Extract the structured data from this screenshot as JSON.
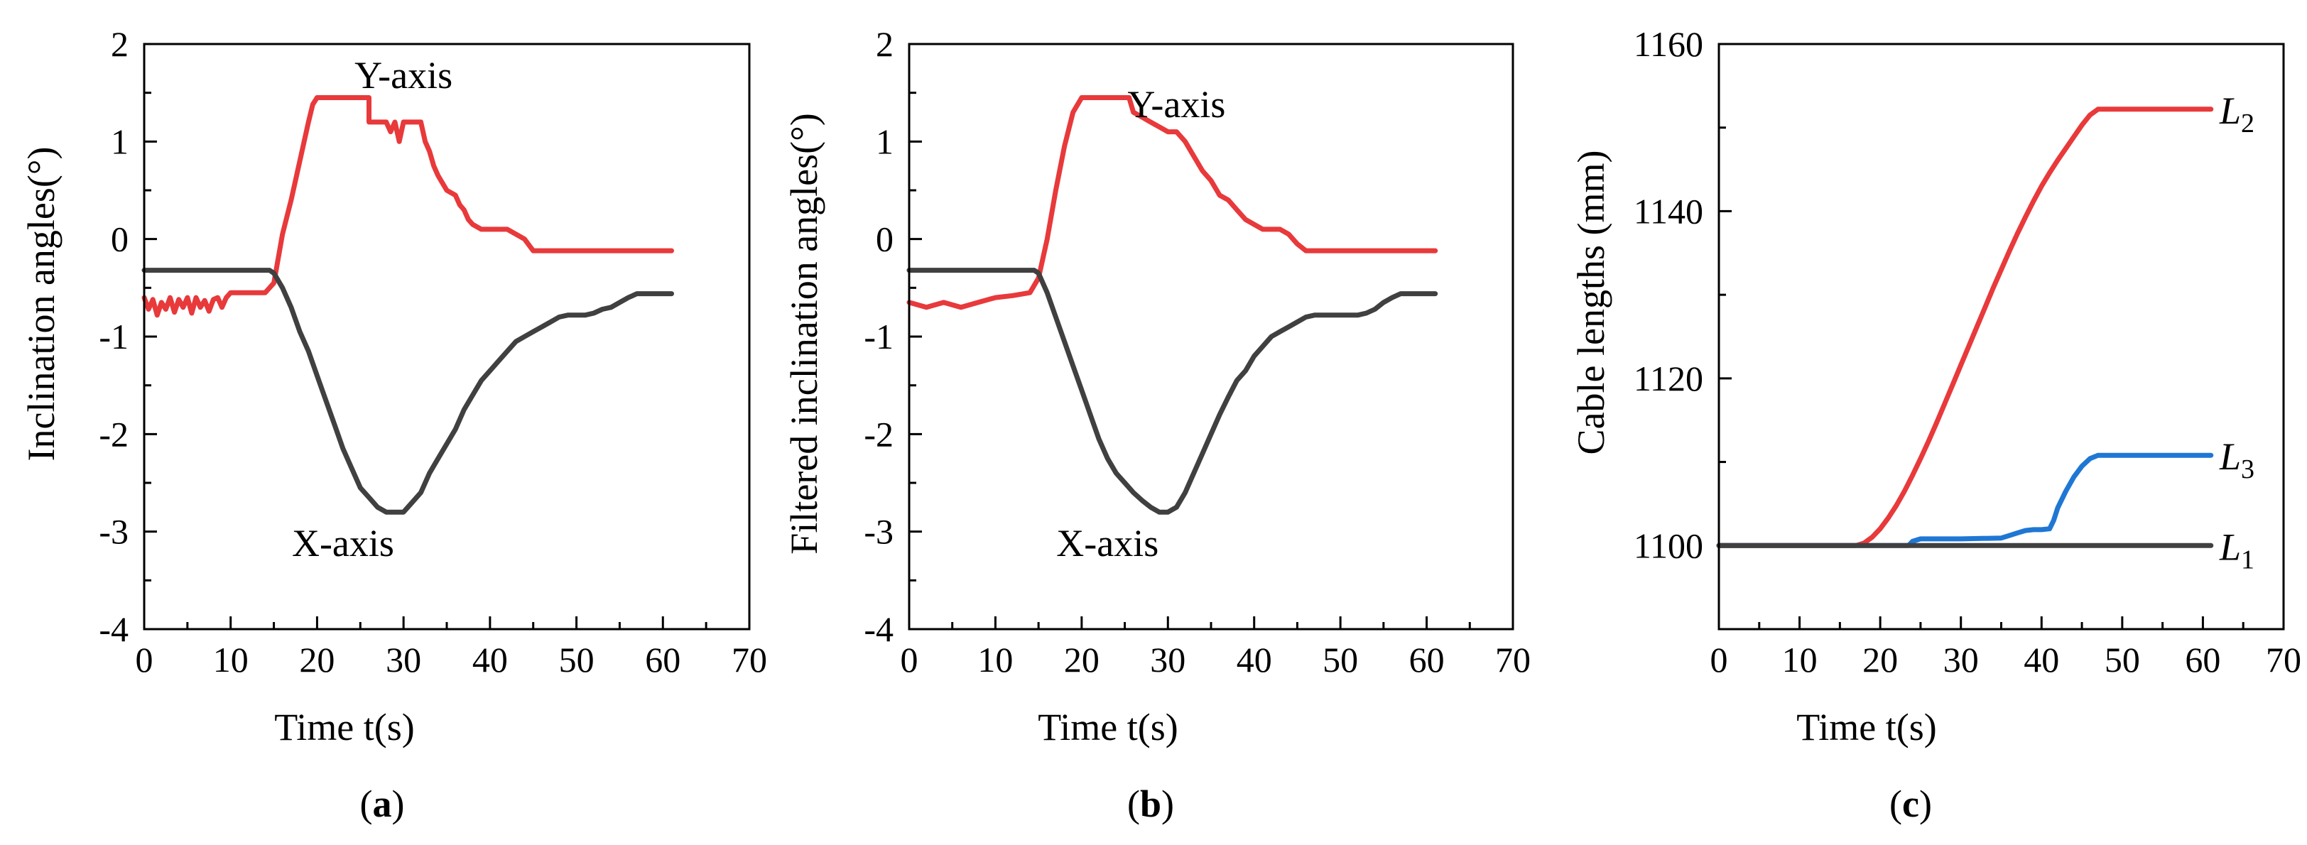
{
  "chart_data": [
    {
      "type": "line",
      "panel_label": "a",
      "xlabel": "Time t(s)",
      "ylabel": "Inclination angles(°)",
      "xlim": [
        0,
        70
      ],
      "ylim": [
        -4,
        2
      ],
      "xticks": [
        "0",
        "10",
        "20",
        "30",
        "40",
        "50",
        "60",
        "70"
      ],
      "yticks": [
        "-4",
        "-3",
        "-2",
        "-1",
        "0",
        "1",
        "2"
      ],
      "annotations": [
        {
          "text": "Y-axis",
          "x": 30,
          "y": 1.55
        },
        {
          "text": "X-axis",
          "x": 23,
          "y": -3.25
        }
      ],
      "series": [
        {
          "name": "Y-axis",
          "color": "#e8393b",
          "x": [
            0,
            0.5,
            1,
            1.5,
            2,
            2.5,
            3,
            3.5,
            4,
            4.5,
            5,
            5.5,
            6,
            6.5,
            7,
            7.5,
            8,
            8.5,
            9,
            9.5,
            10,
            14,
            15,
            16,
            17,
            17.5,
            18,
            18.5,
            19,
            19.5,
            20,
            26,
            26,
            28,
            28.5,
            29,
            29.5,
            30,
            32,
            32.5,
            33,
            33.5,
            34,
            35,
            36,
            36.5,
            37,
            37.5,
            38,
            39,
            40,
            41,
            42,
            43,
            44,
            45,
            61
          ],
          "y": [
            -0.6,
            -0.72,
            -0.62,
            -0.78,
            -0.65,
            -0.72,
            -0.6,
            -0.75,
            -0.62,
            -0.7,
            -0.6,
            -0.76,
            -0.6,
            -0.7,
            -0.63,
            -0.74,
            -0.62,
            -0.6,
            -0.7,
            -0.6,
            -0.55,
            -0.55,
            -0.45,
            0.05,
            0.4,
            0.6,
            0.8,
            1.0,
            1.2,
            1.38,
            1.45,
            1.45,
            1.2,
            1.2,
            1.1,
            1.2,
            1.0,
            1.2,
            1.2,
            1.0,
            0.9,
            0.75,
            0.65,
            0.5,
            0.45,
            0.35,
            0.3,
            0.2,
            0.15,
            0.1,
            0.1,
            0.1,
            0.1,
            0.05,
            0.0,
            -0.12,
            -0.12
          ]
        },
        {
          "name": "X-axis",
          "color": "#404040",
          "x": [
            0,
            14.5,
            15,
            16,
            17,
            18,
            19,
            20,
            21,
            22,
            23,
            24,
            25,
            26,
            27,
            28,
            29,
            30,
            31,
            32,
            33,
            34,
            35,
            36,
            37,
            38,
            39,
            40,
            41,
            42,
            43,
            44,
            45,
            46,
            47,
            48,
            49,
            50,
            51,
            52,
            53,
            54,
            55,
            56,
            57,
            58,
            59,
            60,
            61
          ],
          "y": [
            -0.32,
            -0.32,
            -0.35,
            -0.5,
            -0.7,
            -0.95,
            -1.15,
            -1.4,
            -1.65,
            -1.9,
            -2.15,
            -2.35,
            -2.55,
            -2.65,
            -2.75,
            -2.8,
            -2.8,
            -2.8,
            -2.7,
            -2.6,
            -2.4,
            -2.25,
            -2.1,
            -1.95,
            -1.75,
            -1.6,
            -1.45,
            -1.35,
            -1.25,
            -1.15,
            -1.05,
            -1.0,
            -0.95,
            -0.9,
            -0.85,
            -0.8,
            -0.78,
            -0.78,
            -0.78,
            -0.76,
            -0.72,
            -0.7,
            -0.65,
            -0.6,
            -0.56,
            -0.56,
            -0.56,
            -0.56,
            -0.56
          ]
        }
      ]
    },
    {
      "type": "line",
      "panel_label": "b",
      "xlabel": "Time t(s)",
      "ylabel": "Filtered inclination angles(°)",
      "xlim": [
        0,
        70
      ],
      "ylim": [
        -4,
        2
      ],
      "xticks": [
        "0",
        "10",
        "20",
        "30",
        "40",
        "50",
        "60",
        "70"
      ],
      "yticks": [
        "-4",
        "-3",
        "-2",
        "-1",
        "0",
        "1",
        "2"
      ],
      "annotations": [
        {
          "text": "Y-axis",
          "x": 31,
          "y": 1.25
        },
        {
          "text": "X-axis",
          "x": 23,
          "y": -3.25
        }
      ],
      "series": [
        {
          "name": "Y-axis",
          "color": "#e8393b",
          "x": [
            0,
            2,
            4,
            6,
            8,
            10,
            12,
            14,
            15,
            16,
            17,
            18,
            19,
            20,
            22,
            24,
            25.5,
            26,
            27,
            28,
            29,
            30,
            31,
            32,
            33,
            34,
            35,
            36,
            37,
            38,
            39,
            40,
            41,
            42,
            43,
            44,
            45,
            46,
            50,
            55,
            61
          ],
          "y": [
            -0.65,
            -0.7,
            -0.65,
            -0.7,
            -0.65,
            -0.6,
            -0.58,
            -0.55,
            -0.4,
            0.0,
            0.5,
            0.95,
            1.3,
            1.45,
            1.45,
            1.45,
            1.45,
            1.3,
            1.25,
            1.2,
            1.15,
            1.1,
            1.1,
            1.0,
            0.85,
            0.7,
            0.6,
            0.45,
            0.4,
            0.3,
            0.2,
            0.15,
            0.1,
            0.1,
            0.1,
            0.05,
            -0.05,
            -0.12,
            -0.12,
            -0.12,
            -0.12
          ]
        },
        {
          "name": "X-axis",
          "color": "#404040",
          "x": [
            0,
            14.5,
            15,
            16,
            17,
            18,
            19,
            20,
            21,
            22,
            23,
            24,
            25,
            26,
            27,
            28,
            29,
            30,
            31,
            32,
            33,
            34,
            35,
            36,
            37,
            38,
            39,
            40,
            41,
            42,
            43,
            44,
            45,
            46,
            47,
            48,
            50,
            52,
            53,
            54,
            55,
            56,
            57,
            58,
            61
          ],
          "y": [
            -0.32,
            -0.32,
            -0.35,
            -0.55,
            -0.8,
            -1.05,
            -1.3,
            -1.55,
            -1.8,
            -2.05,
            -2.25,
            -2.4,
            -2.5,
            -2.6,
            -2.68,
            -2.75,
            -2.8,
            -2.8,
            -2.75,
            -2.6,
            -2.4,
            -2.2,
            -2.0,
            -1.8,
            -1.62,
            -1.45,
            -1.35,
            -1.2,
            -1.1,
            -1.0,
            -0.95,
            -0.9,
            -0.85,
            -0.8,
            -0.78,
            -0.78,
            -0.78,
            -0.78,
            -0.76,
            -0.72,
            -0.65,
            -0.6,
            -0.56,
            -0.56,
            -0.56
          ]
        }
      ]
    },
    {
      "type": "line",
      "panel_label": "c",
      "xlabel": "Time t(s)",
      "ylabel": "Cable lengths (mm)",
      "xlim": [
        0,
        70
      ],
      "ylim": [
        1090,
        1160
      ],
      "xticks": [
        "0",
        "10",
        "20",
        "30",
        "40",
        "50",
        "60",
        "70"
      ],
      "yticks": [
        "1100",
        "1120",
        "1140",
        "1160"
      ],
      "series": [
        {
          "name": "L2",
          "label_main": "L",
          "label_sub": "2",
          "color": "#e8393b",
          "x": [
            0,
            17,
            18,
            19,
            20,
            21,
            22,
            23,
            24,
            25,
            26,
            27,
            28,
            29,
            30,
            31,
            32,
            33,
            34,
            35,
            36,
            37,
            38,
            39,
            40,
            41,
            42,
            43,
            44,
            45,
            46,
            47,
            61
          ],
          "y": [
            1100,
            1100,
            1100.3,
            1101,
            1102,
            1103.3,
            1104.8,
            1106.5,
            1108.4,
            1110.4,
            1112.5,
            1114.7,
            1117,
            1119.3,
            1121.6,
            1123.9,
            1126.2,
            1128.5,
            1130.8,
            1133,
            1135.2,
            1137.3,
            1139.3,
            1141.2,
            1143,
            1144.6,
            1146.1,
            1147.5,
            1148.9,
            1150.3,
            1151.5,
            1152.2,
            1152.2
          ]
        },
        {
          "name": "L3",
          "label_main": "L",
          "label_sub": "3",
          "color": "#1f77d4",
          "x": [
            0,
            23.5,
            24,
            25,
            30,
            35,
            36,
            37,
            38,
            39,
            40,
            41,
            41.5,
            42,
            43,
            44,
            45,
            46,
            47,
            61
          ],
          "y": [
            1100,
            1100,
            1100.5,
            1100.8,
            1100.8,
            1100.9,
            1101.2,
            1101.5,
            1101.8,
            1101.9,
            1101.9,
            1102,
            1103,
            1104.5,
            1106.5,
            1108.2,
            1109.5,
            1110.4,
            1110.8,
            1110.8
          ]
        },
        {
          "name": "L1",
          "label_main": "L",
          "label_sub": "1",
          "color": "#404040",
          "x": [
            0,
            61
          ],
          "y": [
            1100,
            1100
          ]
        }
      ]
    }
  ]
}
